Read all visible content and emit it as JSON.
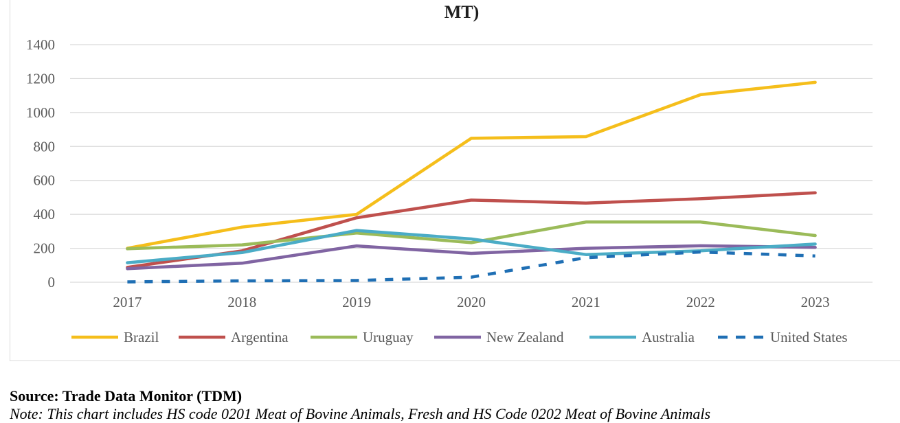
{
  "chart_data": {
    "type": "line",
    "title": "MT)",
    "categories": [
      "2017",
      "2018",
      "2019",
      "2020",
      "2021",
      "2022",
      "2023"
    ],
    "yticks": [
      "0",
      "200",
      "400",
      "600",
      "800",
      "1000",
      "1200",
      "1400"
    ],
    "ylim": [
      0,
      1400
    ],
    "grid": true,
    "legend_position": "bottom",
    "series": [
      {
        "name": "Brazil",
        "color": "#F5BE1B",
        "dashed": false,
        "values": [
          200,
          325,
          400,
          848,
          858,
          1105,
          1178
        ]
      },
      {
        "name": "Argentina",
        "color": "#BF504D",
        "dashed": false,
        "values": [
          88,
          185,
          380,
          484,
          466,
          492,
          527
        ]
      },
      {
        "name": "Uruguay",
        "color": "#9BBB59",
        "dashed": false,
        "values": [
          197,
          220,
          290,
          233,
          355,
          355,
          275
        ]
      },
      {
        "name": "New Zealand",
        "color": "#8064A2",
        "dashed": false,
        "values": [
          80,
          112,
          214,
          170,
          200,
          215,
          205
        ]
      },
      {
        "name": "Australia",
        "color": "#4BACC6",
        "dashed": false,
        "values": [
          115,
          175,
          305,
          255,
          163,
          185,
          225
        ]
      },
      {
        "name": "United States",
        "color": "#1F6FB4",
        "dashed": true,
        "values": [
          2,
          8,
          10,
          30,
          145,
          178,
          155
        ]
      }
    ]
  },
  "source": "Source: Trade Data Monitor (TDM)",
  "note": "Note: This chart includes HS code 0201 Meat of Bovine Animals, Fresh and HS Code 0202 Meat of Bovine Animals"
}
